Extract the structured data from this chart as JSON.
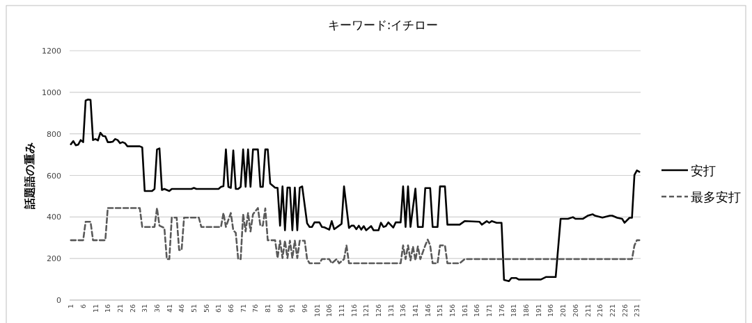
{
  "chart_data": {
    "type": "line",
    "title": "キーワード:イチロー",
    "ylabel": "話題語の重み",
    "xlim": [
      0.5,
      232.5
    ],
    "ylim": [
      0,
      1200
    ],
    "xticks": [
      1,
      6,
      11,
      16,
      21,
      26,
      31,
      36,
      41,
      46,
      51,
      56,
      61,
      66,
      71,
      76,
      81,
      86,
      91,
      96,
      101,
      106,
      111,
      116,
      121,
      126,
      131,
      136,
      141,
      146,
      151,
      156,
      161,
      166,
      171,
      176,
      181,
      186,
      191,
      196,
      201,
      206,
      211,
      216,
      221,
      226,
      231
    ],
    "yticks": [
      0,
      200,
      400,
      600,
      800,
      1000,
      1200
    ],
    "grid": "y",
    "legend": "right",
    "series": [
      {
        "name": "安打",
        "color": "#000000",
        "line_style": "solid",
        "x": [
          1,
          2,
          3,
          4,
          5,
          6,
          7,
          8,
          9,
          10,
          11,
          12,
          13,
          14,
          15,
          16,
          17,
          18,
          19,
          20,
          21,
          22,
          23,
          24,
          29,
          30,
          31,
          34,
          35,
          36,
          37,
          38,
          39,
          40,
          41,
          42,
          50,
          51,
          52,
          61,
          62,
          63,
          64,
          65,
          66,
          67,
          68,
          69,
          70,
          71,
          72,
          73,
          74,
          75,
          77,
          78,
          79,
          80,
          81,
          82,
          84,
          85,
          86,
          87,
          88,
          89,
          90,
          91,
          92,
          93,
          94,
          95,
          97,
          98,
          99,
          100,
          102,
          103,
          104,
          106,
          107,
          108,
          110,
          111,
          112,
          114,
          115,
          116,
          117,
          118,
          119,
          120,
          121,
          123,
          124,
          126,
          127,
          128,
          129,
          130,
          132,
          133,
          135,
          136,
          137,
          138,
          139,
          141,
          142,
          144,
          145,
          147,
          148,
          150,
          151,
          153,
          154,
          159,
          161,
          167,
          168,
          170,
          171,
          172,
          174,
          176,
          177,
          179,
          180,
          182,
          183,
          192,
          194,
          198,
          200,
          203,
          205,
          206,
          209,
          211,
          213,
          214,
          217,
          220,
          221,
          223,
          225,
          226,
          228,
          229,
          230,
          231,
          232
        ],
        "values": [
          750,
          765,
          745,
          748,
          770,
          760,
          960,
          965,
          963,
          770,
          775,
          768,
          805,
          790,
          788,
          760,
          760,
          762,
          775,
          770,
          755,
          760,
          755,
          740,
          740,
          735,
          525,
          525,
          535,
          725,
          730,
          530,
          535,
          530,
          525,
          535,
          535,
          540,
          535,
          535,
          545,
          548,
          725,
          545,
          540,
          720,
          535,
          535,
          545,
          725,
          545,
          725,
          545,
          725,
          725,
          545,
          545,
          725,
          725,
          561,
          541,
          540,
          358,
          547,
          336,
          541,
          541,
          336,
          541,
          336,
          541,
          547,
          369,
          352,
          352,
          374,
          374,
          352,
          350,
          339,
          380,
          341,
          358,
          367,
          547,
          347,
          358,
          358,
          341,
          358,
          339,
          356,
          336,
          356,
          336,
          336,
          372,
          352,
          356,
          374,
          349,
          374,
          374,
          547,
          352,
          547,
          352,
          536,
          352,
          352,
          539,
          539,
          352,
          352,
          547,
          547,
          363,
          363,
          380,
          377,
          363,
          380,
          372,
          380,
          372,
          372,
          97,
          91,
          106,
          106,
          99,
          99,
          111,
          111,
          391,
          391,
          399,
          391,
          391,
          406,
          413,
          406,
          397,
          406,
          406,
          396,
          391,
          372,
          396,
          396,
          602,
          624,
          617
        ]
      },
      {
        "name": "最多安打",
        "color": "#595959",
        "line_style": "dashed",
        "x": [
          1,
          6,
          7,
          9,
          10,
          15,
          16,
          29,
          30,
          35,
          36,
          37,
          39,
          40,
          41,
          42,
          44,
          45,
          46,
          47,
          53,
          54,
          62,
          63,
          64,
          66,
          67,
          68,
          69,
          70,
          71,
          72,
          73,
          74,
          75,
          77,
          78,
          79,
          80,
          81,
          84,
          85,
          86,
          87,
          88,
          89,
          90,
          91,
          92,
          93,
          94,
          96,
          97,
          98,
          102,
          103,
          106,
          107,
          109,
          110,
          112,
          113,
          114,
          135,
          136,
          137,
          138,
          139,
          140,
          141,
          142,
          143,
          145,
          146,
          147,
          148,
          150,
          151,
          153,
          154,
          159,
          161,
          229,
          230,
          231,
          232
        ],
        "values": [
          288,
          288,
          377,
          377,
          288,
          288,
          443,
          443,
          352,
          352,
          443,
          358,
          347,
          197,
          197,
          397,
          397,
          241,
          241,
          397,
          397,
          352,
          352,
          419,
          352,
          419,
          336,
          324,
          197,
          197,
          413,
          330,
          419,
          330,
          413,
          443,
          358,
          358,
          441,
          288,
          288,
          202,
          286,
          202,
          286,
          202,
          286,
          202,
          286,
          202,
          286,
          286,
          197,
          177,
          177,
          197,
          197,
          177,
          197,
          177,
          197,
          263,
          177,
          177,
          263,
          197,
          263,
          191,
          258,
          191,
          258,
          197,
          263,
          291,
          263,
          177,
          177,
          263,
          263,
          177,
          177,
          197,
          197,
          263,
          288,
          288
        ]
      }
    ]
  }
}
